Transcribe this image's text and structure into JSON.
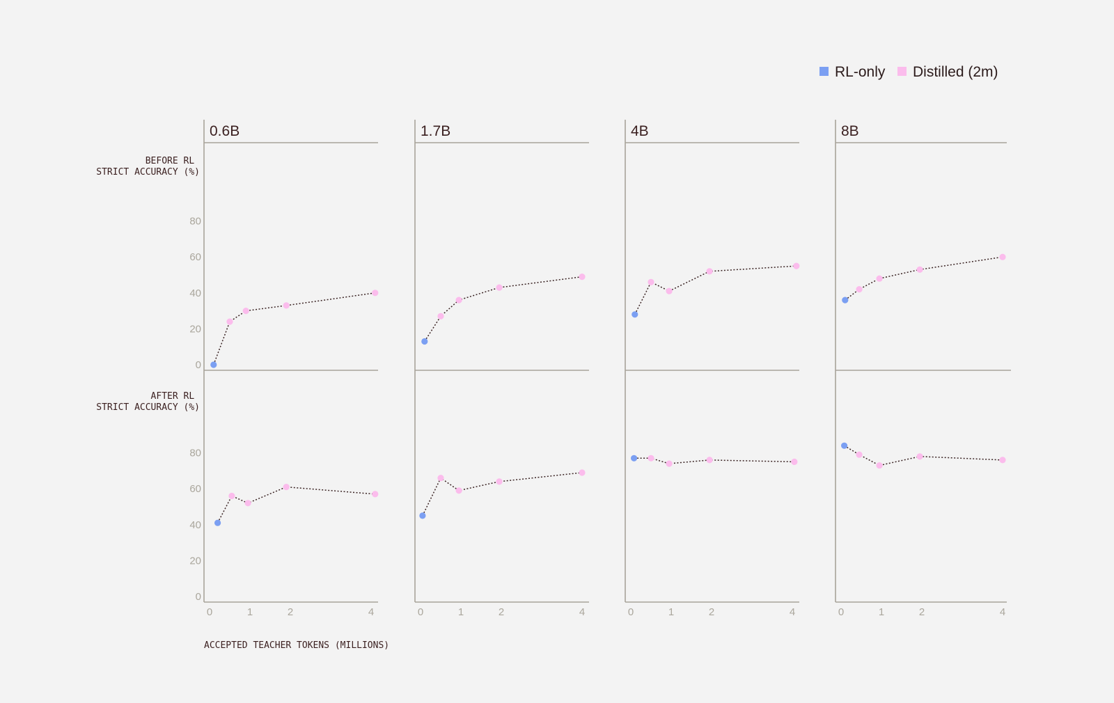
{
  "legend": [
    {
      "label": "RL-only",
      "color": "#7b9ff2"
    },
    {
      "label": "Distilled (2m)",
      "color": "#fbbcec"
    }
  ],
  "row_labels": [
    [
      "BEFORE RL",
      "STRICT ACCURACY (%)"
    ],
    [
      "AFTER RL",
      "STRICT ACCURACY (%)"
    ]
  ],
  "xlabel": "ACCEPTED TEACHER TOKENS (MILLIONS)",
  "colors": {
    "axis": "#a8a399",
    "connector": "#3a2323",
    "rl_only": "#7b9ff2",
    "distilled": "#fbbcec"
  },
  "chart_data": {
    "type": "line",
    "x_ticks": [
      0,
      1,
      2,
      4
    ],
    "y_ticks": [
      0,
      20,
      40,
      60,
      80
    ],
    "ylim": [
      0,
      100
    ],
    "grid": false,
    "legend_position": "top-right",
    "series_names": [
      "RL-only",
      "Distilled (2m)"
    ],
    "panels": [
      {
        "title": "0.6B",
        "before": [
          {
            "x": 0.1,
            "y": 0,
            "series": "RL-only"
          },
          {
            "x": 0.5,
            "y": 24,
            "series": "Distilled (2m)"
          },
          {
            "x": 0.9,
            "y": 30,
            "series": "Distilled (2m)"
          },
          {
            "x": 1.9,
            "y": 33,
            "series": "Distilled (2m)"
          },
          {
            "x": 4.1,
            "y": 40,
            "series": "Distilled (2m)"
          }
        ],
        "after": [
          {
            "x": 0.2,
            "y": 41,
            "series": "RL-only"
          },
          {
            "x": 0.55,
            "y": 56,
            "series": "Distilled (2m)"
          },
          {
            "x": 0.95,
            "y": 52,
            "series": "Distilled (2m)"
          },
          {
            "x": 1.9,
            "y": 61,
            "series": "Distilled (2m)"
          },
          {
            "x": 4.1,
            "y": 57,
            "series": "Distilled (2m)"
          }
        ]
      },
      {
        "title": "1.7B",
        "before": [
          {
            "x": 0.1,
            "y": 13,
            "series": "RL-only"
          },
          {
            "x": 0.5,
            "y": 27,
            "series": "Distilled (2m)"
          },
          {
            "x": 0.95,
            "y": 36,
            "series": "Distilled (2m)"
          },
          {
            "x": 1.95,
            "y": 43,
            "series": "Distilled (2m)"
          },
          {
            "x": 4.0,
            "y": 49,
            "series": "Distilled (2m)"
          }
        ],
        "after": [
          {
            "x": 0.05,
            "y": 45,
            "series": "RL-only"
          },
          {
            "x": 0.5,
            "y": 66,
            "series": "Distilled (2m)"
          },
          {
            "x": 0.95,
            "y": 59,
            "series": "Distilled (2m)"
          },
          {
            "x": 1.95,
            "y": 64,
            "series": "Distilled (2m)"
          },
          {
            "x": 4.0,
            "y": 69,
            "series": "Distilled (2m)"
          }
        ]
      },
      {
        "title": "4B",
        "before": [
          {
            "x": 0.1,
            "y": 28,
            "series": "RL-only"
          },
          {
            "x": 0.5,
            "y": 46,
            "series": "Distilled (2m)"
          },
          {
            "x": 0.95,
            "y": 41,
            "series": "Distilled (2m)"
          },
          {
            "x": 1.95,
            "y": 52,
            "series": "Distilled (2m)"
          },
          {
            "x": 4.1,
            "y": 55,
            "series": "Distilled (2m)"
          }
        ],
        "after": [
          {
            "x": 0.08,
            "y": 77,
            "series": "RL-only"
          },
          {
            "x": 0.5,
            "y": 77,
            "series": "Distilled (2m)"
          },
          {
            "x": 0.95,
            "y": 74,
            "series": "Distilled (2m)"
          },
          {
            "x": 1.95,
            "y": 76,
            "series": "Distilled (2m)"
          },
          {
            "x": 4.05,
            "y": 75,
            "series": "Distilled (2m)"
          }
        ]
      },
      {
        "title": "8B",
        "before": [
          {
            "x": 0.1,
            "y": 36,
            "series": "RL-only"
          },
          {
            "x": 0.45,
            "y": 42,
            "series": "Distilled (2m)"
          },
          {
            "x": 0.95,
            "y": 48,
            "series": "Distilled (2m)"
          },
          {
            "x": 1.95,
            "y": 53,
            "series": "Distilled (2m)"
          },
          {
            "x": 4.0,
            "y": 60,
            "series": "Distilled (2m)"
          }
        ],
        "after": [
          {
            "x": 0.08,
            "y": 84,
            "series": "RL-only"
          },
          {
            "x": 0.45,
            "y": 79,
            "series": "Distilled (2m)"
          },
          {
            "x": 0.95,
            "y": 73,
            "series": "Distilled (2m)"
          },
          {
            "x": 1.95,
            "y": 78,
            "series": "Distilled (2m)"
          },
          {
            "x": 4.0,
            "y": 76,
            "series": "Distilled (2m)"
          }
        ]
      }
    ]
  }
}
